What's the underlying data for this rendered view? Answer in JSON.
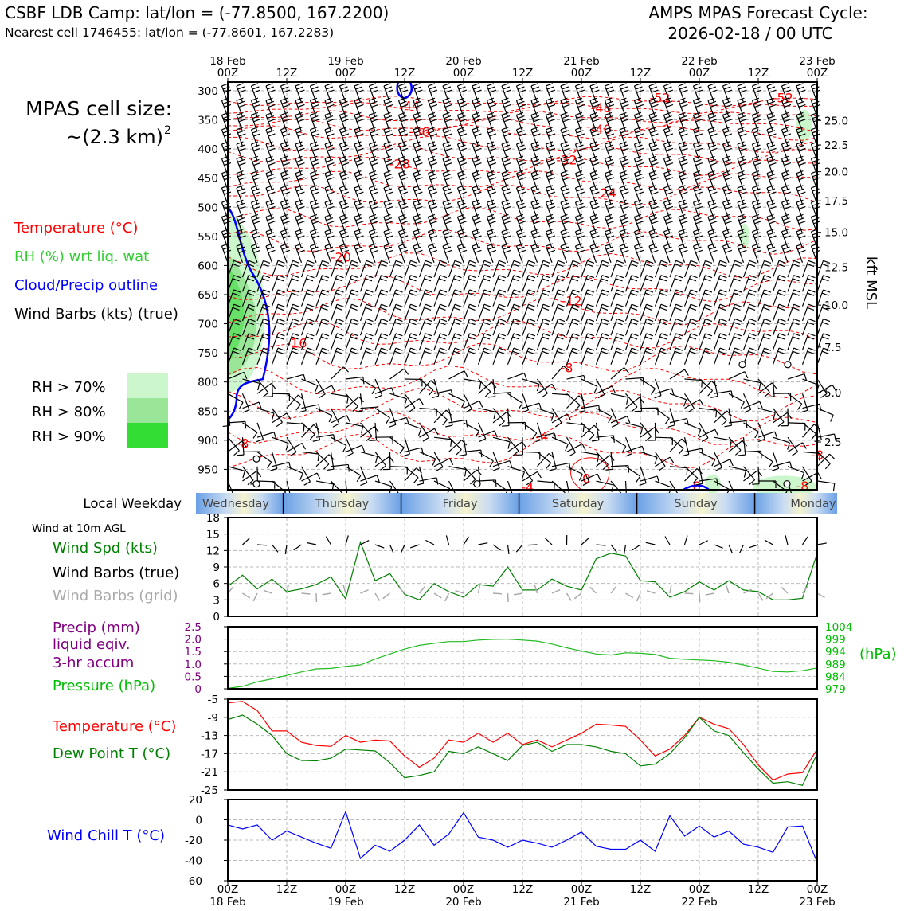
{
  "header": {
    "title_left": "CSBF LDB Camp: lat/lon = (-77.8500, 167.2200)",
    "subtitle_left": "Nearest cell 1746455: lat/lon = (-77.8601, 167.2283)",
    "title_right_1": "AMPS MPAS Forecast Cycle:",
    "title_right_2": "2026-02-18 / 00 UTC"
  },
  "legend": {
    "cell_size_1": "MPAS cell size:",
    "cell_size_2": "~(2.3 km)",
    "cell_size_sup": "2",
    "temperature": "Temperature (°C)",
    "rh": "RH (%) wrt liq. wat",
    "cloud": "Cloud/Precip outline",
    "wind": "Wind Barbs (kts) (true)",
    "rh70": "RH > 70%",
    "rh80": "RH > 80%",
    "rh90": "RH > 90%"
  },
  "colors": {
    "temp": "#ff0000",
    "rh_text": "#33cc33",
    "cloud": "#0000ff",
    "rh70": "#ccf7cc",
    "rh80": "#99e699",
    "rh90": "#33dd33",
    "pressure": "#00bb00",
    "precip": "#800080",
    "dewpoint": "#008000",
    "windchill": "#0000ff",
    "grid_barb": "#aaaaaa"
  },
  "time_axis": {
    "top_ticks": [
      {
        "top": "18 Feb",
        "bottom": "00Z"
      },
      {
        "top": "",
        "bottom": "12Z"
      },
      {
        "top": "19 Feb",
        "bottom": "00Z"
      },
      {
        "top": "",
        "bottom": "12Z"
      },
      {
        "top": "20 Feb",
        "bottom": "00Z"
      },
      {
        "top": "",
        "bottom": "12Z"
      },
      {
        "top": "21 Feb",
        "bottom": "00Z"
      },
      {
        "top": "",
        "bottom": "12Z"
      },
      {
        "top": "22 Feb",
        "bottom": "00Z"
      },
      {
        "top": "",
        "bottom": "12Z"
      },
      {
        "top": "23 Feb",
        "bottom": "00Z"
      }
    ],
    "bottom_ticks": [
      {
        "top": "00Z",
        "bottom": "18 Feb"
      },
      {
        "top": "12Z",
        "bottom": ""
      },
      {
        "top": "00Z",
        "bottom": "19 Feb"
      },
      {
        "top": "12Z",
        "bottom": ""
      },
      {
        "top": "00Z",
        "bottom": "20 Feb"
      },
      {
        "top": "12Z",
        "bottom": ""
      },
      {
        "top": "00Z",
        "bottom": "21 Feb"
      },
      {
        "top": "12Z",
        "bottom": ""
      },
      {
        "top": "00Z",
        "bottom": "22 Feb"
      },
      {
        "top": "12Z",
        "bottom": ""
      },
      {
        "top": "00Z",
        "bottom": "23 Feb"
      }
    ]
  },
  "weekday_band": {
    "label": "Local Weekday",
    "days": [
      "Wednesday",
      "Thursday",
      "Friday",
      "Saturday",
      "Sunday",
      "Monday"
    ]
  },
  "panel_labels": {
    "wind10m_title": "Wind at 10m AGL",
    "wind_spd": "Wind Spd (kts)",
    "wind_barbs_true": "Wind Barbs (true)",
    "wind_barbs_grid": "Wind Barbs (grid)",
    "precip_1": "Precip (mm)",
    "precip_2": "liquid eqiv.",
    "precip_3": "3-hr accum",
    "pressure": "Pressure (hPa)",
    "pressure_unit": "(hPa)",
    "temperature": "Temperature (°C)",
    "dewpoint": "Dew Point T (°C)",
    "windchill": "Wind Chill T (°C)",
    "kft_label": "kft MSL"
  },
  "chart_data": [
    {
      "type": "heatmap",
      "name": "time-height cross section",
      "y_ticks": [
        300,
        350,
        400,
        450,
        500,
        550,
        600,
        650,
        700,
        750,
        800,
        850,
        900,
        950
      ],
      "y_range": [
        300,
        985
      ],
      "right_ticks": [
        {
          "label": "25.0",
          "p": 351
        },
        {
          "label": "22.5",
          "p": 393
        },
        {
          "label": "20.0",
          "p": 439
        },
        {
          "label": "17.5",
          "p": 489
        },
        {
          "label": "15.0",
          "p": 543
        },
        {
          "label": "12.5",
          "p": 603
        },
        {
          "label": "10.0",
          "p": 668
        },
        {
          "label": "7.5",
          "p": 740
        },
        {
          "label": "5.0",
          "p": 818
        },
        {
          "label": "2.5",
          "p": 903
        }
      ],
      "temp_labels": [
        {
          "text": "-52",
          "h": 88,
          "p": 312
        },
        {
          "text": "-52",
          "h": 113,
          "p": 312
        },
        {
          "text": "-44",
          "h": 37,
          "p": 325
        },
        {
          "text": "-48",
          "h": 76,
          "p": 329
        },
        {
          "text": "-40",
          "h": 76,
          "p": 366
        },
        {
          "text": "-36",
          "h": 39,
          "p": 370
        },
        {
          "text": "-32",
          "h": 69,
          "p": 418
        },
        {
          "text": "-28",
          "h": 35,
          "p": 425
        },
        {
          "text": "-24",
          "h": 77,
          "p": 475
        },
        {
          "text": "-20",
          "h": 23,
          "p": 585
        },
        {
          "text": "-12",
          "h": 70,
          "p": 660
        },
        {
          "text": "-16",
          "h": 14,
          "p": 733
        },
        {
          "text": "-8",
          "h": 69,
          "p": 775
        },
        {
          "text": "-4",
          "h": 64,
          "p": 893
        },
        {
          "text": "0",
          "h": 73,
          "p": 965
        },
        {
          "text": "-4",
          "h": 61,
          "p": 980
        },
        {
          "text": "-8",
          "h": 3,
          "p": 905
        },
        {
          "text": "-8",
          "h": 95,
          "p": 978
        },
        {
          "text": "-8",
          "h": 117,
          "p": 978
        },
        {
          "text": "-8",
          "h": 120,
          "p": 925
        }
      ]
    },
    {
      "type": "line",
      "name": "Wind Spd (kts)",
      "ylim": [
        0,
        18
      ],
      "yticks": [
        0,
        3,
        6,
        9,
        12,
        15,
        18
      ],
      "x_hours": [
        0,
        3,
        6,
        9,
        12,
        15,
        18,
        21,
        24,
        27,
        30,
        33,
        36,
        39,
        42,
        45,
        48,
        51,
        54,
        57,
        60,
        63,
        66,
        69,
        72,
        75,
        78,
        81,
        84,
        87,
        90,
        93,
        96,
        99,
        102,
        105,
        108,
        111,
        114,
        117,
        120
      ],
      "values": [
        5.5,
        7.5,
        5.0,
        6.8,
        4.5,
        5.0,
        5.8,
        7.2,
        3.2,
        13.5,
        6.5,
        7.8,
        4.0,
        3.0,
        6.0,
        4.5,
        3.5,
        5.8,
        5.5,
        9.0,
        4.8,
        4.8,
        6.8,
        5.5,
        4.8,
        10.5,
        11.5,
        11.0,
        6.5,
        6.3,
        3.5,
        4.5,
        6.3,
        4.8,
        6.5,
        4.8,
        4.5,
        3.0,
        3.0,
        3.3,
        11.5
      ]
    },
    {
      "type": "line",
      "name": "Pressure (hPa)",
      "ylim_left": [
        0,
        2.5
      ],
      "yticks_left": [
        0,
        0.5,
        1.0,
        1.5,
        2.0,
        2.5
      ],
      "ylim_right": [
        979,
        1004
      ],
      "yticks_right": [
        979,
        984,
        989,
        994,
        999,
        1004
      ],
      "x_hours": [
        0,
        3,
        6,
        9,
        12,
        15,
        18,
        21,
        24,
        27,
        30,
        33,
        36,
        39,
        42,
        45,
        48,
        51,
        54,
        57,
        60,
        63,
        66,
        69,
        72,
        75,
        78,
        81,
        84,
        87,
        90,
        93,
        96,
        99,
        102,
        105,
        108,
        111,
        114,
        117,
        120
      ],
      "values": [
        979.2,
        980,
        981.8,
        983,
        984.4,
        985.8,
        987,
        987.2,
        988,
        988.6,
        991,
        993,
        995,
        996.5,
        997.3,
        998,
        998,
        998.6,
        998.9,
        999,
        998.6,
        998.2,
        997,
        995.5,
        994.2,
        993,
        992.6,
        993.5,
        993.3,
        992.8,
        991.3,
        990.9,
        990.6,
        990.3,
        989.7,
        988.6,
        987.3,
        986,
        985.8,
        986.3,
        987.4
      ]
    },
    {
      "type": "line",
      "name": "Temperature / Dew Point",
      "ylim": [
        -25,
        -5
      ],
      "yticks": [
        -5,
        -9,
        -13,
        -17,
        -21,
        -25
      ],
      "x_hours": [
        0,
        3,
        6,
        9,
        12,
        15,
        18,
        21,
        24,
        27,
        30,
        33,
        36,
        39,
        42,
        45,
        48,
        51,
        54,
        57,
        60,
        63,
        66,
        69,
        72,
        75,
        78,
        81,
        84,
        87,
        90,
        93,
        96,
        99,
        102,
        105,
        108,
        111,
        114,
        117,
        120
      ],
      "series": [
        {
          "name": "Temperature (°C)",
          "values": [
            -5.8,
            -5.5,
            -7.5,
            -12,
            -12,
            -14.5,
            -15.2,
            -15.4,
            -13,
            -14.5,
            -14,
            -14.2,
            -17.5,
            -20,
            -18,
            -14,
            -14.5,
            -12.5,
            -14.5,
            -12.5,
            -15,
            -14,
            -15.5,
            -14,
            -12.5,
            -10.5,
            -10.7,
            -11,
            -14,
            -17.5,
            -16,
            -13,
            -9,
            -10.5,
            -11.5,
            -15,
            -19.5,
            -22.8,
            -21.5,
            -21.2,
            -16
          ]
        },
        {
          "name": "Dew Point T (°C)",
          "values": [
            -9.5,
            -8.5,
            -10.5,
            -13,
            -17,
            -18.5,
            -18.6,
            -18,
            -16,
            -16.2,
            -16.4,
            -19,
            -22.3,
            -21.8,
            -21,
            -16.5,
            -17,
            -15.5,
            -17,
            -18.5,
            -15.2,
            -14.5,
            -16.5,
            -15,
            -15,
            -15.5,
            -16.5,
            -17,
            -19.7,
            -19.3,
            -17,
            -13.5,
            -9,
            -12,
            -13,
            -16.8,
            -20.4,
            -23.5,
            -23.2,
            -24,
            -17
          ]
        }
      ]
    },
    {
      "type": "line",
      "name": "Wind Chill T (°C)",
      "ylim": [
        -60,
        20
      ],
      "yticks": [
        20,
        0,
        -20,
        -40,
        -60
      ],
      "x_hours": [
        0,
        3,
        6,
        9,
        12,
        15,
        18,
        21,
        24,
        27,
        30,
        33,
        36,
        39,
        42,
        45,
        48,
        51,
        54,
        57,
        60,
        63,
        66,
        69,
        72,
        75,
        78,
        81,
        84,
        87,
        90,
        93,
        96,
        99,
        102,
        105,
        108,
        111,
        114,
        117,
        120
      ],
      "values": [
        -5,
        -9,
        -5,
        -20,
        -11,
        -17,
        -23,
        -28,
        8,
        -38,
        -25,
        -31,
        -20,
        -5,
        -25,
        -14,
        7,
        -17,
        -20,
        -27,
        -20,
        -23,
        -27,
        -20,
        -12,
        -26,
        -29,
        -29,
        -20,
        -31,
        4,
        -16,
        -6,
        -17,
        -11,
        -24,
        -27,
        -32,
        -7,
        -6,
        -42
      ]
    }
  ]
}
